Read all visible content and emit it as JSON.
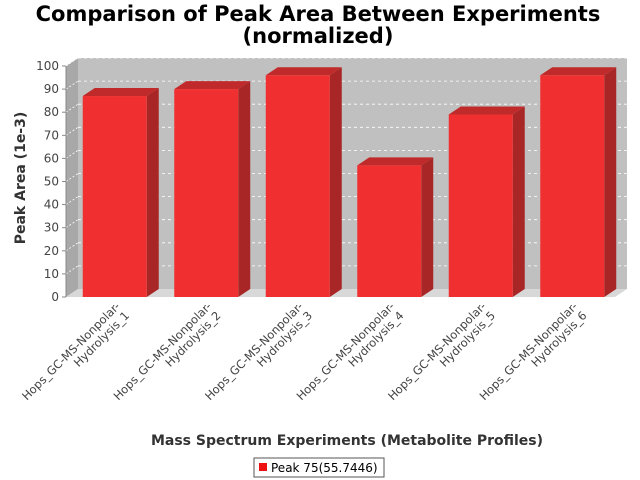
{
  "chart_data": {
    "type": "bar",
    "title_line1": "Comparison of Peak Area Between Experiments",
    "title_line2": "(normalized)",
    "xlabel": "Mass Spectrum Experiments (Metabolite Profiles)",
    "ylabel": "Peak Area (1e-3)",
    "categories": [
      [
        "Hops_GC-MS-Nonpolar-",
        "Hydrolysis_1"
      ],
      [
        "Hops_GC-MS-Nonpolar-",
        "Hydrolysis_2"
      ],
      [
        "Hops_GC-MS-Nonpolar-",
        "Hydrolysis_3"
      ],
      [
        "Hops_GC-MS-Nonpolar-",
        "Hydrolysis_4"
      ],
      [
        "Hops_GC-MS-Nonpolar-",
        "Hydrolysis_5"
      ],
      [
        "Hops_GC-MS-Nonpolar-",
        "Hydrolysis_6"
      ]
    ],
    "series": [
      {
        "name": "Peak 75(55.7446)",
        "values": [
          87,
          90,
          96,
          57,
          79,
          96
        ]
      }
    ],
    "ylim": [
      0,
      100
    ],
    "yticks": [
      0,
      10,
      20,
      30,
      40,
      50,
      60,
      70,
      80,
      90,
      100
    ],
    "grid": true,
    "legend_position": "bottom",
    "bar_color": "#f03030",
    "plot_background": "#c0c0c0"
  }
}
